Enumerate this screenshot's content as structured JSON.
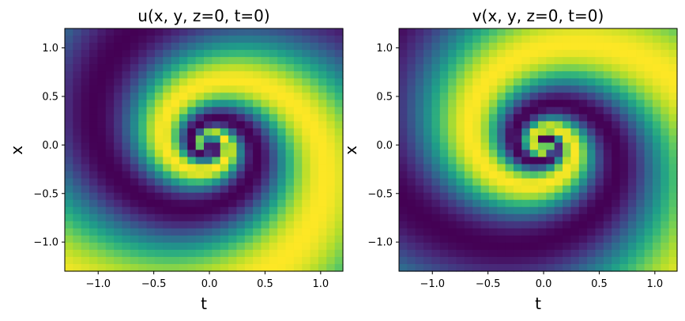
{
  "chart_data": [
    {
      "type": "heatmap",
      "title": "u(x, y, z=0, t=0)",
      "xlabel": "t",
      "ylabel": "x",
      "xlim": [
        -1.3,
        1.2
      ],
      "ylim": [
        -1.3,
        1.2
      ],
      "xticks": [
        -1.0,
        -0.5,
        0.0,
        0.5,
        1.0
      ],
      "xtick_labels": [
        "−1.0",
        "−0.5",
        "0.0",
        "0.5",
        "1.0"
      ],
      "yticks": [
        -1.0,
        -0.5,
        0.0,
        0.5,
        1.0
      ],
      "ytick_labels": [
        "−1.0",
        "−0.5",
        "0.0",
        "0.5",
        "1.0"
      ],
      "grid": {
        "nx": 34,
        "ny": 34
      },
      "field": "cos",
      "colormap": "viridis",
      "value_range": [
        -1,
        1
      ]
    },
    {
      "type": "heatmap",
      "title": "v(x, y, z=0, t=0)",
      "xlabel": "t",
      "ylabel": "x",
      "xlim": [
        -1.3,
        1.2
      ],
      "ylim": [
        -1.3,
        1.2
      ],
      "xticks": [
        -1.0,
        -0.5,
        0.0,
        0.5,
        1.0
      ],
      "xtick_labels": [
        "−1.0",
        "−0.5",
        "0.0",
        "0.5",
        "1.0"
      ],
      "yticks": [
        -1.0,
        -0.5,
        0.0,
        0.5,
        1.0
      ],
      "ytick_labels": [
        "−1.0",
        "−0.5",
        "0.0",
        "0.5",
        "1.0"
      ],
      "grid": {
        "nx": 34,
        "ny": 34
      },
      "field": "sin",
      "colormap": "viridis",
      "value_range": [
        -1,
        1
      ]
    }
  ],
  "colors": {
    "viridis_stops": [
      "#440154",
      "#482878",
      "#3e4989",
      "#31688e",
      "#26828e",
      "#1f9e89",
      "#35b779",
      "#6ece58",
      "#b5de2b",
      "#fde725"
    ]
  }
}
